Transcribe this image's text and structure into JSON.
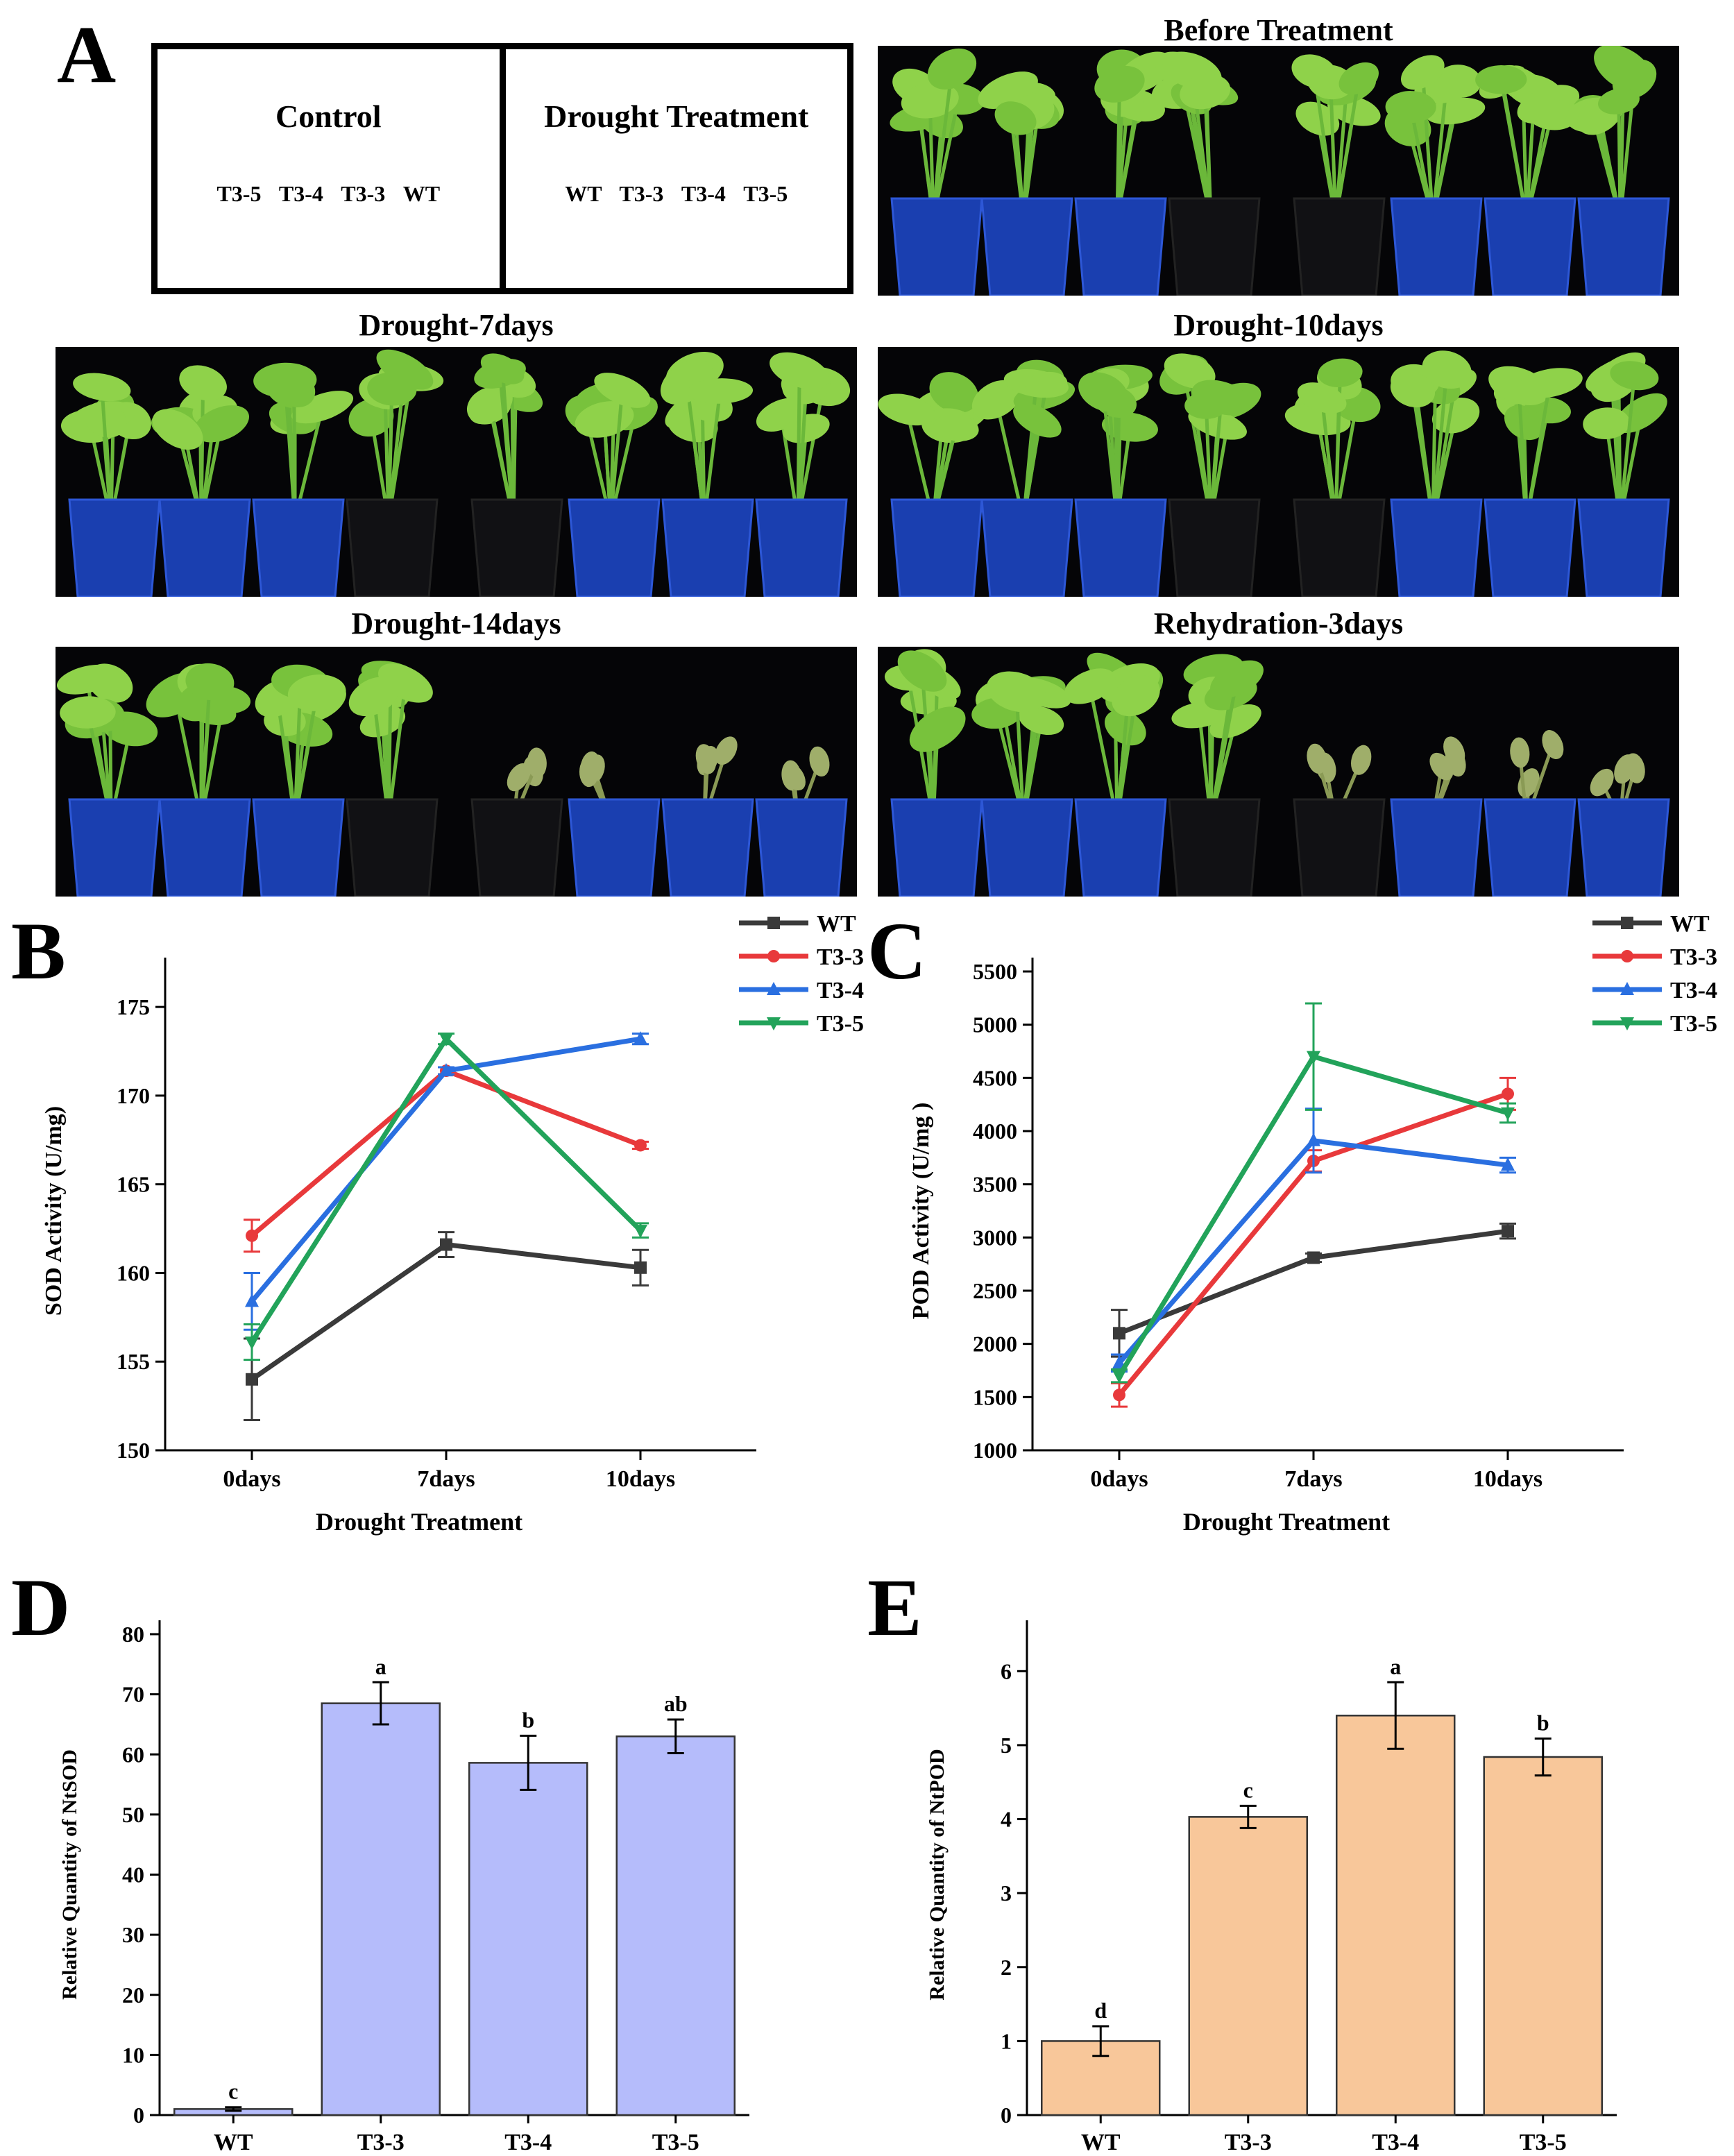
{
  "panels": {
    "A": "A",
    "B": "B",
    "C": "C",
    "D": "D",
    "E": "E"
  },
  "schematic": {
    "control_title": "Control",
    "control_order": "T3-5 T3-4 T3-3 WT",
    "treatment_title": "Drought Treatment",
    "treatment_order": "WT T3-3 T3-4 T3-5"
  },
  "photos": {
    "before": "Before Treatment",
    "d7": "Drought-7days",
    "d10": "Drought-10days",
    "d14": "Drought-14days",
    "rehyd": "Rehydration-3days"
  },
  "colors": {
    "WT": "#3a3a3a",
    "T3-3": "#e8393b",
    "T3-4": "#2a6fe0",
    "T3-5": "#22a35a",
    "bar_sod": "#b5bcfb",
    "bar_pod": "#f8c79a"
  },
  "chart_data": [
    {
      "id": "B",
      "type": "line",
      "title": "",
      "xlabel": "Drought Treatment",
      "ylabel": "SOD Activity (U/mg)",
      "categories": [
        "0days",
        "7days",
        "10days"
      ],
      "ylim": [
        150,
        177
      ],
      "yticks": [
        150,
        155,
        160,
        165,
        170,
        175
      ],
      "legend_position": "top-right",
      "series": [
        {
          "name": "WT",
          "marker": "square",
          "values": [
            154.0,
            161.6,
            160.3
          ],
          "errors": [
            2.3,
            0.7,
            1.0
          ]
        },
        {
          "name": "T3-3",
          "marker": "circle",
          "values": [
            162.1,
            171.4,
            167.2
          ],
          "errors": [
            0.9,
            0.2,
            0.2
          ]
        },
        {
          "name": "T3-4",
          "marker": "triangle-up",
          "values": [
            158.4,
            171.4,
            173.2
          ],
          "errors": [
            1.6,
            0.2,
            0.3
          ]
        },
        {
          "name": "T3-5",
          "marker": "triangle-down",
          "values": [
            156.1,
            173.2,
            162.4
          ],
          "errors": [
            1.0,
            0.3,
            0.4
          ]
        }
      ]
    },
    {
      "id": "C",
      "type": "line",
      "title": "",
      "xlabel": "Drought Treatment",
      "ylabel": "POD Activity (U/mg )",
      "categories": [
        "0days",
        "7days",
        "10days"
      ],
      "ylim": [
        1000,
        5500
      ],
      "yticks": [
        1000,
        1500,
        2000,
        2500,
        3000,
        3500,
        4000,
        4500,
        5000,
        5500
      ],
      "legend_position": "top-right",
      "series": [
        {
          "name": "WT",
          "marker": "square",
          "values": [
            2100,
            2810,
            3060
          ],
          "errors": [
            220,
            40,
            70
          ]
        },
        {
          "name": "T3-3",
          "marker": "circle",
          "values": [
            1520,
            3720,
            4350
          ],
          "errors": [
            110,
            100,
            150
          ]
        },
        {
          "name": "T3-4",
          "marker": "triangle-up",
          "values": [
            1820,
            3910,
            3680
          ],
          "errors": [
            80,
            300,
            70
          ]
        },
        {
          "name": "T3-5",
          "marker": "triangle-down",
          "values": [
            1700,
            4700,
            4170
          ],
          "errors": [
            60,
            500,
            90
          ]
        }
      ]
    },
    {
      "id": "D",
      "type": "bar",
      "title": "",
      "xlabel": "",
      "ylabel": "Relative Quantity of NtSOD",
      "categories": [
        "WT",
        "T3-3",
        "T3-4",
        "T3-5"
      ],
      "values": [
        1.0,
        68.5,
        58.6,
        63.0
      ],
      "errors": [
        0.3,
        3.5,
        4.5,
        2.8
      ],
      "letters": [
        "c",
        "a",
        "b",
        "ab"
      ],
      "ylim": [
        0,
        80
      ],
      "yticks": [
        0,
        10,
        20,
        30,
        40,
        50,
        60,
        70,
        80
      ]
    },
    {
      "id": "E",
      "type": "bar",
      "title": "",
      "xlabel": "",
      "ylabel": "Relative Quantity of NtPOD",
      "categories": [
        "WT",
        "T3-3",
        "T3-4",
        "T3-5"
      ],
      "values": [
        1.0,
        4.03,
        5.4,
        4.84
      ],
      "errors": [
        0.2,
        0.15,
        0.45,
        0.25
      ],
      "letters": [
        "d",
        "c",
        "a",
        "b"
      ],
      "ylim": [
        0,
        6.5
      ],
      "yticks": [
        0,
        1,
        2,
        3,
        4,
        5,
        6
      ]
    }
  ]
}
